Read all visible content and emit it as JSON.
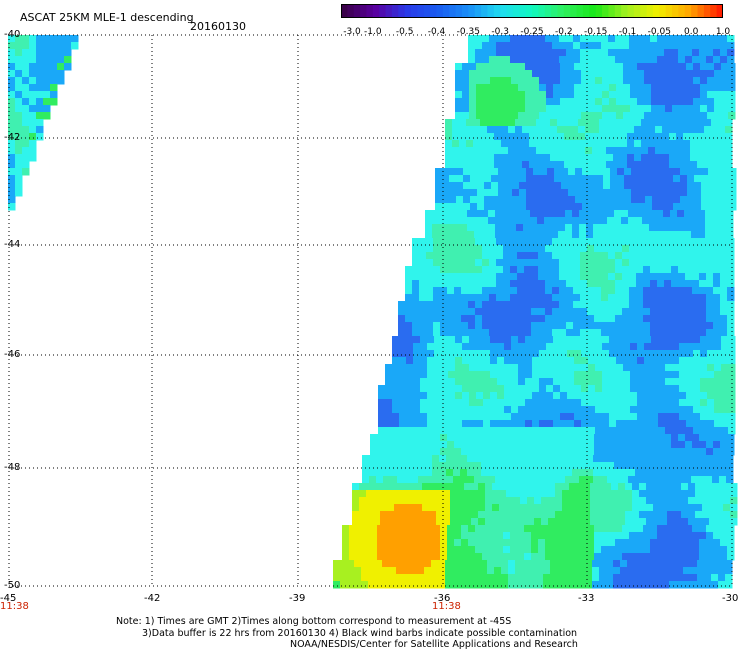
{
  "header": {
    "title": "ASCAT 25KM MLE-1 descending",
    "date": "20160130"
  },
  "colorbar": {
    "tick_labels": [
      "-3.0",
      "-1.0",
      "-0.5",
      "-0.4",
      "-0.35",
      "-0.3",
      "-0.25",
      "-0.2",
      "-0.15",
      "-0.1",
      "-0.05",
      "0.0",
      "1.0"
    ],
    "colors": [
      "#3a004a",
      "#5a00a0",
      "#2a3ae8",
      "#1a5cf0",
      "#1a90f8",
      "#20dcf0",
      "#10f8c0",
      "#30f060",
      "#18e818",
      "#a0f020",
      "#f0f000",
      "#ffa800",
      "#ff2000"
    ]
  },
  "axes": {
    "latitude_labels": [
      "-40",
      "-42",
      "-44",
      "-46",
      "-48",
      "-50"
    ],
    "longitude_labels": [
      "-45",
      "-42",
      "-39",
      "-36",
      "-33",
      "-30"
    ],
    "time_labels": [
      "11:38",
      "11:38"
    ]
  },
  "notes": {
    "line1": "Note: 1) Times are GMT 2)Times along bottom correspond to measurement at -45S",
    "line2": "3)Data buffer is 22 hrs from 20160130 4) Black wind barbs indicate possible contamination",
    "line3": "NOAA/NESDIS/Center for Satellite Applications and Research"
  },
  "map_field": {
    "colors": [
      "#2a6cf0",
      "#1aa8f8",
      "#30f4ec",
      "#40f0b0",
      "#30ec60",
      "#a8f020",
      "#f0f000",
      "#ffa000"
    ]
  }
}
